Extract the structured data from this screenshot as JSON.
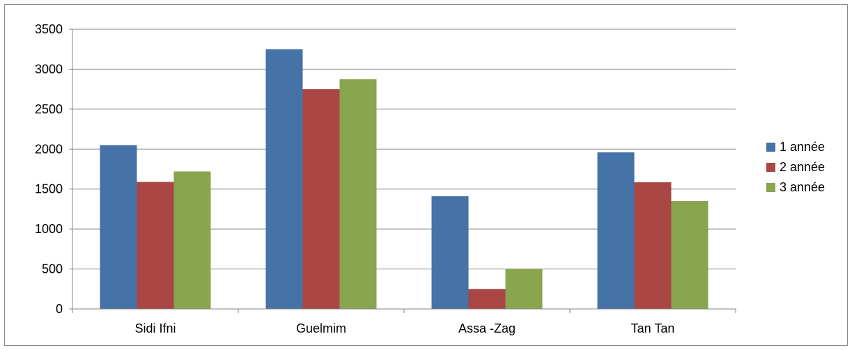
{
  "chart_data": {
    "type": "bar",
    "categories": [
      "Sidi Ifni",
      "Guelmim",
      "Assa -Zag",
      "Tan Tan"
    ],
    "series": [
      {
        "name": "1 année",
        "color": "#4572a7",
        "values": [
          2050,
          3250,
          1410,
          1960
        ]
      },
      {
        "name": "2 année",
        "color": "#aa4643",
        "values": [
          1590,
          2750,
          250,
          1585
        ]
      },
      {
        "name": "3 année",
        "color": "#89a54e",
        "values": [
          1720,
          2875,
          500,
          1350
        ]
      }
    ],
    "ylim": [
      0,
      3500
    ],
    "yticks": [
      "0",
      "500",
      "1000",
      "1500",
      "2000",
      "2500",
      "3000",
      "3500"
    ],
    "grid": true,
    "legend_position": "right",
    "title": "",
    "xlabel": "",
    "ylabel": ""
  }
}
